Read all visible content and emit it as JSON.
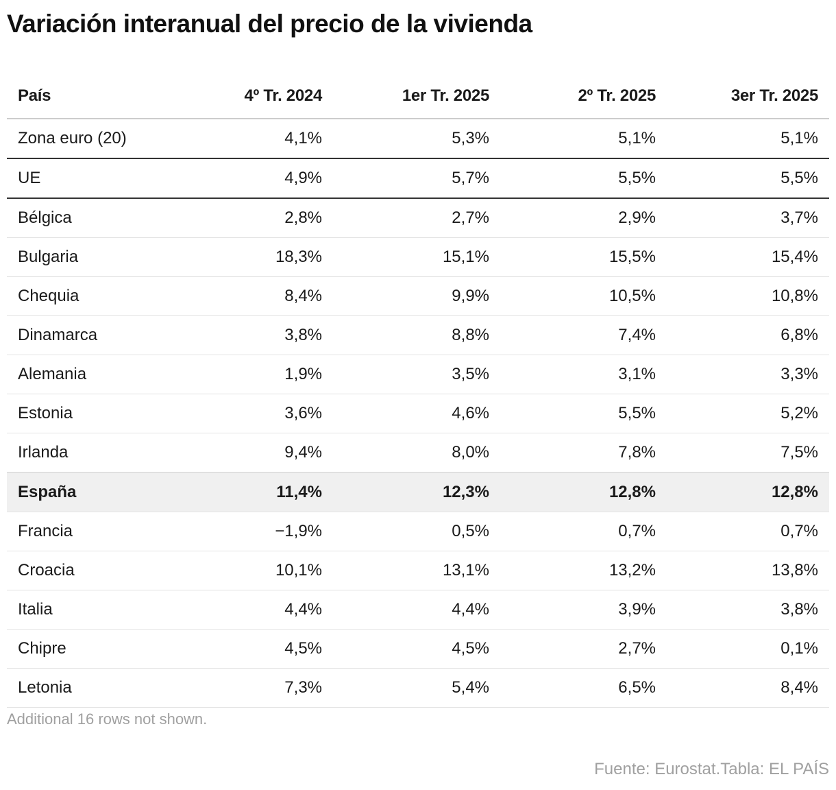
{
  "title": "Variación interanual del precio de la vivienda",
  "chart_data": {
    "type": "table",
    "title": "Variación interanual del precio de la vivienda",
    "columns": [
      "País",
      "4º Tr. 2024",
      "1er Tr. 2025",
      "2º Tr. 2025",
      "3er Tr. 2025"
    ],
    "rows": [
      {
        "pais": "Zona euro (20)",
        "values": [
          "4,1%",
          "5,3%",
          "5,1%",
          "5,1%"
        ],
        "separator": "dark"
      },
      {
        "pais": "UE",
        "values": [
          "4,9%",
          "5,7%",
          "5,5%",
          "5,5%"
        ],
        "separator": "dark"
      },
      {
        "pais": "Bélgica",
        "values": [
          "2,8%",
          "2,7%",
          "2,9%",
          "3,7%"
        ]
      },
      {
        "pais": "Bulgaria",
        "values": [
          "18,3%",
          "15,1%",
          "15,5%",
          "15,4%"
        ]
      },
      {
        "pais": "Chequia",
        "values": [
          "8,4%",
          "9,9%",
          "10,5%",
          "10,8%"
        ]
      },
      {
        "pais": "Dinamarca",
        "values": [
          "3,8%",
          "8,8%",
          "7,4%",
          "6,8%"
        ]
      },
      {
        "pais": "Alemania",
        "values": [
          "1,9%",
          "3,5%",
          "3,1%",
          "3,3%"
        ]
      },
      {
        "pais": "Estonia",
        "values": [
          "3,6%",
          "4,6%",
          "5,5%",
          "5,2%"
        ]
      },
      {
        "pais": "Irlanda",
        "values": [
          "9,4%",
          "8,0%",
          "7,8%",
          "7,5%"
        ]
      },
      {
        "pais": "España",
        "values": [
          "11,4%",
          "12,3%",
          "12,8%",
          "12,8%"
        ],
        "highlight": true
      },
      {
        "pais": "Francia",
        "values": [
          "−1,9%",
          "0,5%",
          "0,7%",
          "0,7%"
        ]
      },
      {
        "pais": "Croacia",
        "values": [
          "10,1%",
          "13,1%",
          "13,2%",
          "13,8%"
        ]
      },
      {
        "pais": "Italia",
        "values": [
          "4,4%",
          "4,4%",
          "3,9%",
          "3,8%"
        ]
      },
      {
        "pais": "Chipre",
        "values": [
          "4,5%",
          "4,5%",
          "2,7%",
          "0,1%"
        ]
      },
      {
        "pais": "Letonia",
        "values": [
          "7,3%",
          "5,4%",
          "6,5%",
          "8,4%"
        ]
      }
    ],
    "highlight_color": "#f0f0f0"
  },
  "note": "Additional 16 rows not shown.",
  "source": "Fuente: Eurostat.Tabla: EL PAÍS"
}
